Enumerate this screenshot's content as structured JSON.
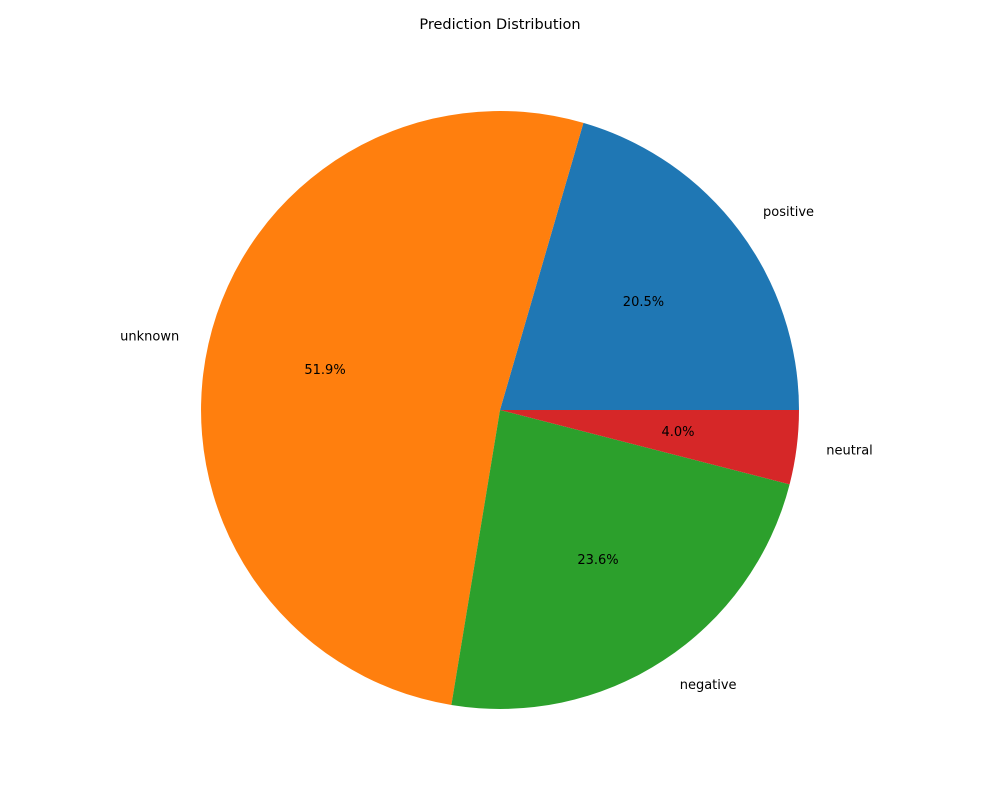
{
  "chart_data": {
    "type": "pie",
    "title": "Prediction Distribution",
    "start_angle_deg": 0,
    "direction": "counterclockwise",
    "slices": [
      {
        "label": "positive",
        "value": 20.5,
        "pct_text": "20.5%",
        "color": "#1f77b4"
      },
      {
        "label": "unknown",
        "value": 51.9,
        "pct_text": "51.9%",
        "color": "#ff7f0e"
      },
      {
        "label": "negative",
        "value": 23.6,
        "pct_text": "23.6%",
        "color": "#2ca02c"
      },
      {
        "label": "neutral",
        "value": 4.0,
        "pct_text": "4.0%",
        "color": "#d62728"
      }
    ]
  }
}
